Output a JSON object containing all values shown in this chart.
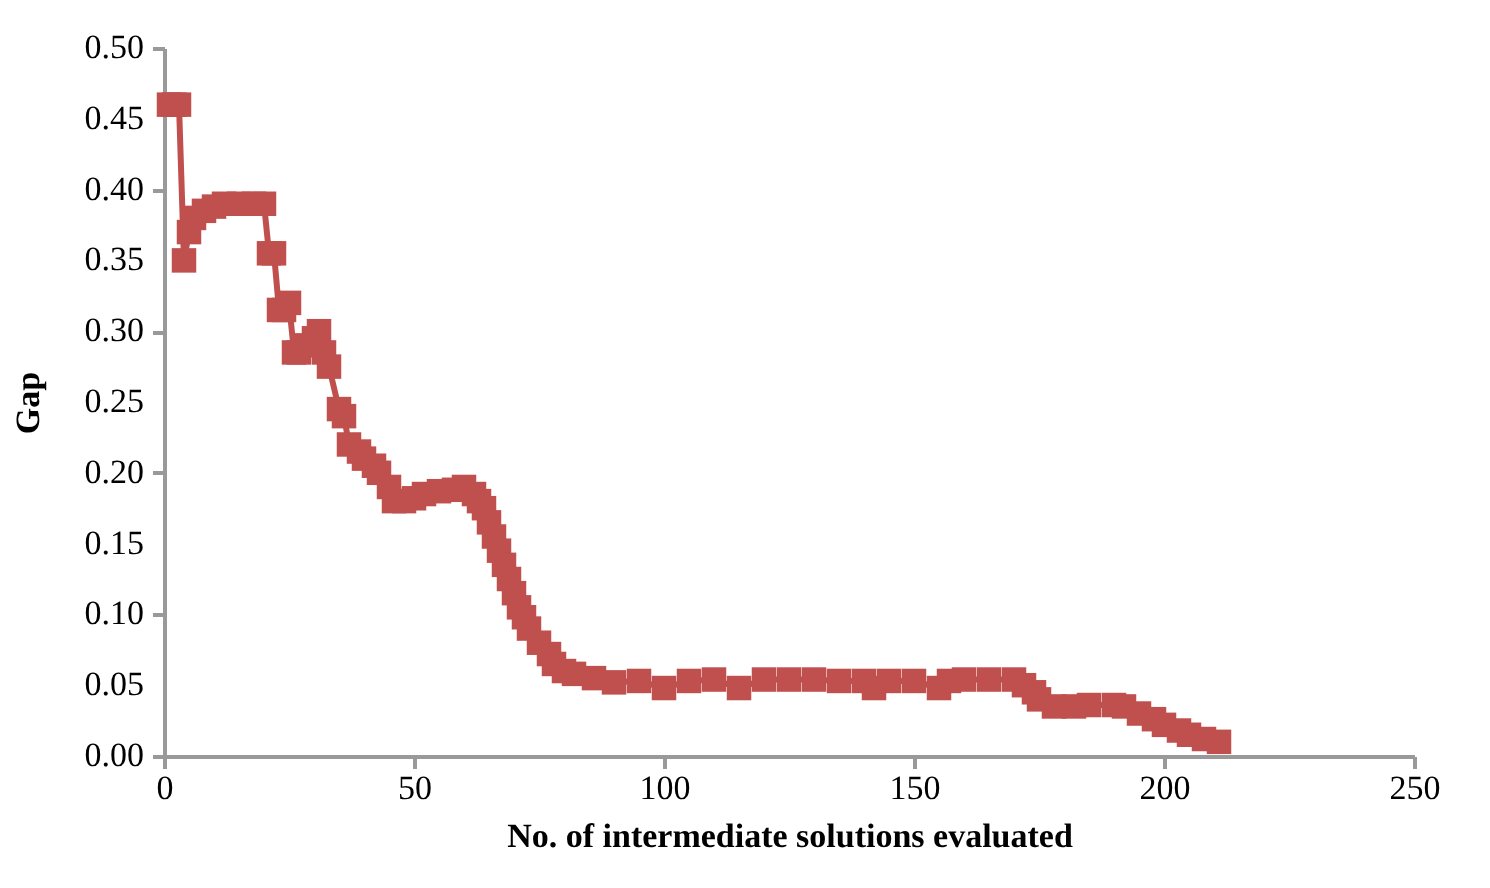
{
  "chart_data": {
    "type": "line",
    "xlabel": "No. of intermediate solutions evaluated",
    "ylabel": "Gap",
    "x": [
      1,
      2,
      3,
      4,
      5,
      6,
      8,
      10,
      12,
      15,
      18,
      20,
      21,
      22,
      23,
      24,
      25,
      26,
      27,
      28,
      30,
      31,
      32,
      33,
      35,
      36,
      37,
      39,
      40,
      42,
      43,
      45,
      46,
      48,
      50,
      52,
      55,
      58,
      60,
      62,
      63,
      64,
      65,
      66,
      67,
      68,
      69,
      70,
      71,
      72,
      73,
      75,
      77,
      78,
      80,
      82,
      86,
      90,
      95,
      100,
      105,
      110,
      115,
      120,
      125,
      130,
      135,
      140,
      142,
      145,
      150,
      155,
      157,
      160,
      165,
      170,
      172,
      174,
      175,
      178,
      182,
      185,
      190,
      192,
      195,
      198,
      200,
      203,
      205,
      208,
      211
    ],
    "series": [
      {
        "color": "#c0504d",
        "values": [
          0.46,
          0.46,
          0.46,
          0.35,
          0.37,
          0.38,
          0.385,
          0.388,
          0.39,
          0.39,
          0.39,
          0.39,
          0.355,
          0.355,
          0.315,
          0.315,
          0.32,
          0.285,
          0.285,
          0.29,
          0.295,
          0.3,
          0.285,
          0.275,
          0.245,
          0.24,
          0.22,
          0.215,
          0.21,
          0.205,
          0.2,
          0.19,
          0.18,
          0.18,
          0.182,
          0.185,
          0.187,
          0.188,
          0.19,
          0.185,
          0.18,
          0.175,
          0.165,
          0.155,
          0.145,
          0.135,
          0.125,
          0.115,
          0.105,
          0.098,
          0.09,
          0.08,
          0.072,
          0.065,
          0.06,
          0.058,
          0.055,
          0.052,
          0.053,
          0.048,
          0.053,
          0.054,
          0.048,
          0.054,
          0.054,
          0.054,
          0.053,
          0.053,
          0.048,
          0.053,
          0.053,
          0.048,
          0.053,
          0.054,
          0.054,
          0.054,
          0.05,
          0.045,
          0.04,
          0.035,
          0.035,
          0.036,
          0.036,
          0.035,
          0.03,
          0.026,
          0.022,
          0.018,
          0.015,
          0.012,
          0.01
        ]
      }
    ],
    "xlim": [
      0,
      250
    ],
    "xticks": [
      0,
      50,
      100,
      150,
      200,
      250
    ],
    "ylim": [
      0,
      0.5
    ],
    "yticks": [
      {
        "value": 0,
        "label": "0.00"
      },
      {
        "value": 0.05,
        "label": "0.05"
      },
      {
        "value": 0.1,
        "label": "0.10"
      },
      {
        "value": 0.15,
        "label": "0.15"
      },
      {
        "value": 0.2,
        "label": "0.20"
      },
      {
        "value": 0.25,
        "label": "0.25"
      },
      {
        "value": 0.3,
        "label": "0.30"
      },
      {
        "value": 0.35,
        "label": "0.35"
      },
      {
        "value": 0.4,
        "label": "0.40"
      },
      {
        "value": 0.45,
        "label": "0.45"
      },
      {
        "value": 0.5,
        "label": "0.50"
      }
    ],
    "marker": "square",
    "grid": false,
    "legend": false
  }
}
